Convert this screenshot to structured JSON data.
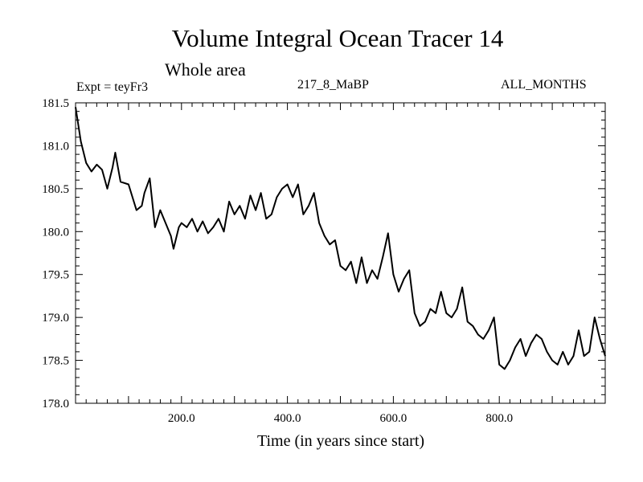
{
  "chart_data": {
    "type": "line",
    "title": "Volume Integral Ocean Tracer 14",
    "subtitle": "Whole area",
    "experiment": "Expt = teyFr3",
    "run_label": "217_8_MaBP",
    "months_label": "ALL_MONTHS",
    "xlabel": "Time (in years since start)",
    "ylabel": "",
    "xlim": [
      0,
      1000
    ],
    "ylim": [
      178.0,
      181.5
    ],
    "xticks": [
      200.0,
      400.0,
      600.0,
      800.0
    ],
    "xtick_labels": [
      "200.0",
      "400.0",
      "600.0",
      "800.0"
    ],
    "yticks": [
      178.0,
      178.5,
      179.0,
      179.5,
      180.0,
      180.5,
      181.0,
      181.5
    ],
    "ytick_labels": [
      "178.0",
      "178.5",
      "179.0",
      "179.5",
      "180.0",
      "180.5",
      "181.0",
      "181.5"
    ],
    "series": [
      {
        "name": "Volume Integral Ocean Tracer 14",
        "x": [
          0,
          10,
          20,
          30,
          40,
          50,
          60,
          70,
          75,
          85,
          100,
          115,
          125,
          130,
          140,
          150,
          160,
          170,
          180,
          185,
          195,
          200,
          210,
          220,
          230,
          240,
          250,
          260,
          270,
          280,
          290,
          300,
          310,
          320,
          330,
          340,
          350,
          360,
          370,
          380,
          390,
          400,
          410,
          420,
          430,
          440,
          450,
          460,
          470,
          480,
          490,
          500,
          510,
          520,
          530,
          540,
          550,
          560,
          570,
          580,
          590,
          600,
          610,
          620,
          630,
          640,
          650,
          660,
          670,
          680,
          690,
          700,
          710,
          720,
          730,
          740,
          750,
          760,
          770,
          780,
          790,
          800,
          810,
          820,
          830,
          840,
          850,
          860,
          870,
          880,
          890,
          900,
          910,
          920,
          930,
          940,
          950,
          960,
          970,
          980,
          990,
          1000
        ],
        "values": [
          181.45,
          181.05,
          180.8,
          180.7,
          180.78,
          180.72,
          180.5,
          180.75,
          180.92,
          180.58,
          180.55,
          180.25,
          180.3,
          180.45,
          180.62,
          180.05,
          180.25,
          180.1,
          179.95,
          179.8,
          180.05,
          180.1,
          180.05,
          180.15,
          180.0,
          180.12,
          179.98,
          180.05,
          180.15,
          180.0,
          180.35,
          180.2,
          180.3,
          180.15,
          180.42,
          180.25,
          180.45,
          180.15,
          180.2,
          180.4,
          180.5,
          180.55,
          180.4,
          180.55,
          180.2,
          180.3,
          180.45,
          180.1,
          179.95,
          179.85,
          179.9,
          179.6,
          179.55,
          179.65,
          179.4,
          179.7,
          179.4,
          179.55,
          179.45,
          179.7,
          179.98,
          179.5,
          179.3,
          179.45,
          179.55,
          179.05,
          178.9,
          178.95,
          179.1,
          179.05,
          179.3,
          179.05,
          179.0,
          179.1,
          179.35,
          178.95,
          178.9,
          178.8,
          178.75,
          178.85,
          179.0,
          178.45,
          178.4,
          178.5,
          178.65,
          178.75,
          178.55,
          178.7,
          178.8,
          178.75,
          178.6,
          178.5,
          178.45,
          178.6,
          178.45,
          178.55,
          178.85,
          178.55,
          178.6,
          179.0,
          178.75,
          178.55
        ]
      }
    ]
  }
}
